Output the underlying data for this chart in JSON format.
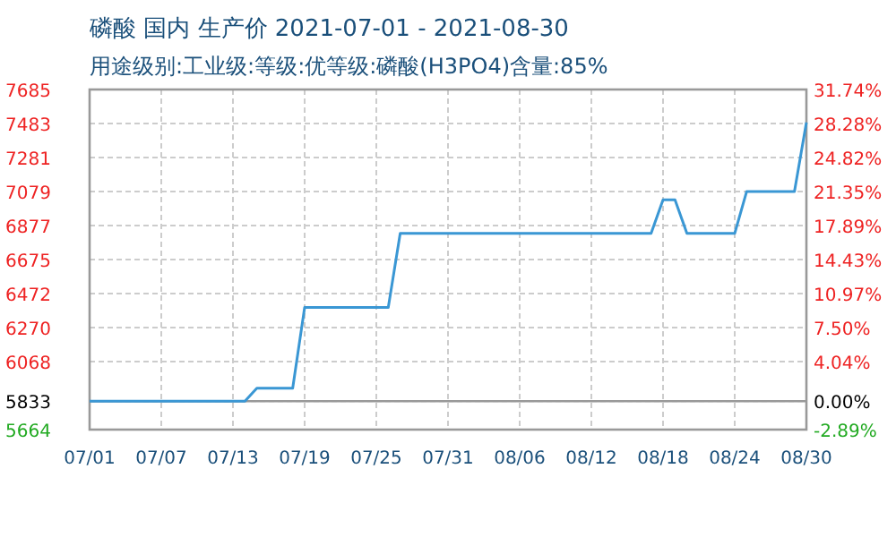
{
  "chart_data": {
    "type": "line",
    "title": "磷酸 国内 生产价 2021-07-01 - 2021-08-30",
    "subtitle": "用途级别:工业级:等级:优等级:磷酸(H3PO4)含量:85%",
    "x": [
      "2021-07-01",
      "2021-07-14",
      "2021-07-15",
      "2021-07-18",
      "2021-07-19",
      "2021-07-26",
      "2021-07-27",
      "2021-08-17",
      "2021-08-18",
      "2021-08-19",
      "2021-08-20",
      "2021-08-24",
      "2021-08-25",
      "2021-08-29",
      "2021-08-30"
    ],
    "series": [
      {
        "color": "#3a97d4",
        "values": [
          5833,
          5833,
          5910,
          5910,
          6390,
          6390,
          6830,
          6830,
          7030,
          7030,
          6830,
          6830,
          7079,
          7079,
          7490
        ]
      }
    ],
    "xlim": [
      "2021-07-01",
      "2021-08-30"
    ],
    "xticks": [
      {
        "value": "2021-07-01",
        "label": "07/01"
      },
      {
        "value": "2021-07-07",
        "label": "07/07"
      },
      {
        "value": "2021-07-13",
        "label": "07/13"
      },
      {
        "value": "2021-07-19",
        "label": "07/19"
      },
      {
        "value": "2021-07-25",
        "label": "07/25"
      },
      {
        "value": "2021-07-31",
        "label": "07/31"
      },
      {
        "value": "2021-08-06",
        "label": "08/06"
      },
      {
        "value": "2021-08-12",
        "label": "08/12"
      },
      {
        "value": "2021-08-18",
        "label": "08/18"
      },
      {
        "value": "2021-08-24",
        "label": "08/24"
      },
      {
        "value": "2021-08-30",
        "label": "08/30"
      }
    ],
    "ylim": [
      5664,
      7685
    ],
    "yticks": [
      5664,
      5833,
      6068,
      6270,
      6472,
      6675,
      6877,
      7079,
      7281,
      7483,
      7685
    ],
    "y2lim": [
      -2.89,
      31.74
    ],
    "y2ticks": [
      {
        "value": -2.89,
        "label": "-2.89%"
      },
      {
        "value": 0,
        "label": "0.00%"
      },
      {
        "value": 4.04,
        "label": "4.04%"
      },
      {
        "value": 7.5,
        "label": "7.50%"
      },
      {
        "value": 10.97,
        "label": "10.97%"
      },
      {
        "value": 14.43,
        "label": "14.43%"
      },
      {
        "value": 17.89,
        "label": "17.89%"
      },
      {
        "value": 21.35,
        "label": "21.35%"
      },
      {
        "value": 24.82,
        "label": "24.82%"
      },
      {
        "value": 28.28,
        "label": "28.28%"
      },
      {
        "value": 31.74,
        "label": "31.74%"
      }
    ],
    "ref_lines": [
      {
        "axis": "y",
        "value": 5833,
        "color": "#999999"
      }
    ],
    "grid": true,
    "marker": "none",
    "line_style": "solid"
  }
}
